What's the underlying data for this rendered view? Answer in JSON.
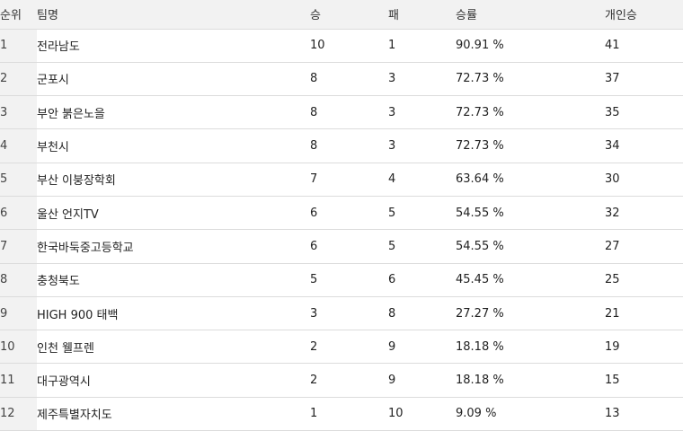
{
  "header": {
    "rank": "순위",
    "team": "팀명",
    "wins": "승",
    "losses": "패",
    "win_rate": "승률",
    "individual_wins": "개인승"
  },
  "rows": [
    {
      "rank": "1",
      "team": "전라남도",
      "wins": "10",
      "losses": "1",
      "win_rate": "90.91 %",
      "individual_wins": "41"
    },
    {
      "rank": "2",
      "team": "군포시",
      "wins": "8",
      "losses": "3",
      "win_rate": "72.73 %",
      "individual_wins": "37"
    },
    {
      "rank": "3",
      "team": "부안 붉은노을",
      "wins": "8",
      "losses": "3",
      "win_rate": "72.73 %",
      "individual_wins": "35"
    },
    {
      "rank": "4",
      "team": "부천시",
      "wins": "8",
      "losses": "3",
      "win_rate": "72.73 %",
      "individual_wins": "34"
    },
    {
      "rank": "5",
      "team": "부산 이붕장학회",
      "wins": "7",
      "losses": "4",
      "win_rate": "63.64 %",
      "individual_wins": "30"
    },
    {
      "rank": "6",
      "team": "울산 언지TV",
      "wins": "6",
      "losses": "5",
      "win_rate": "54.55 %",
      "individual_wins": "32"
    },
    {
      "rank": "7",
      "team": "한국바둑중고등학교",
      "wins": "6",
      "losses": "5",
      "win_rate": "54.55 %",
      "individual_wins": "27"
    },
    {
      "rank": "8",
      "team": "충청북도",
      "wins": "5",
      "losses": "6",
      "win_rate": "45.45 %",
      "individual_wins": "25"
    },
    {
      "rank": "9",
      "team": "HIGH 900 태백",
      "wins": "3",
      "losses": "8",
      "win_rate": "27.27 %",
      "individual_wins": "21"
    },
    {
      "rank": "10",
      "team": "인천 웰프렌",
      "wins": "2",
      "losses": "9",
      "win_rate": "18.18 %",
      "individual_wins": "19"
    },
    {
      "rank": "11",
      "team": "대구광역시",
      "wins": "2",
      "losses": "9",
      "win_rate": "18.18 %",
      "individual_wins": "15"
    },
    {
      "rank": "12",
      "team": "제주특별자치도",
      "wins": "1",
      "losses": "10",
      "win_rate": "9.09 %",
      "individual_wins": "13"
    }
  ]
}
